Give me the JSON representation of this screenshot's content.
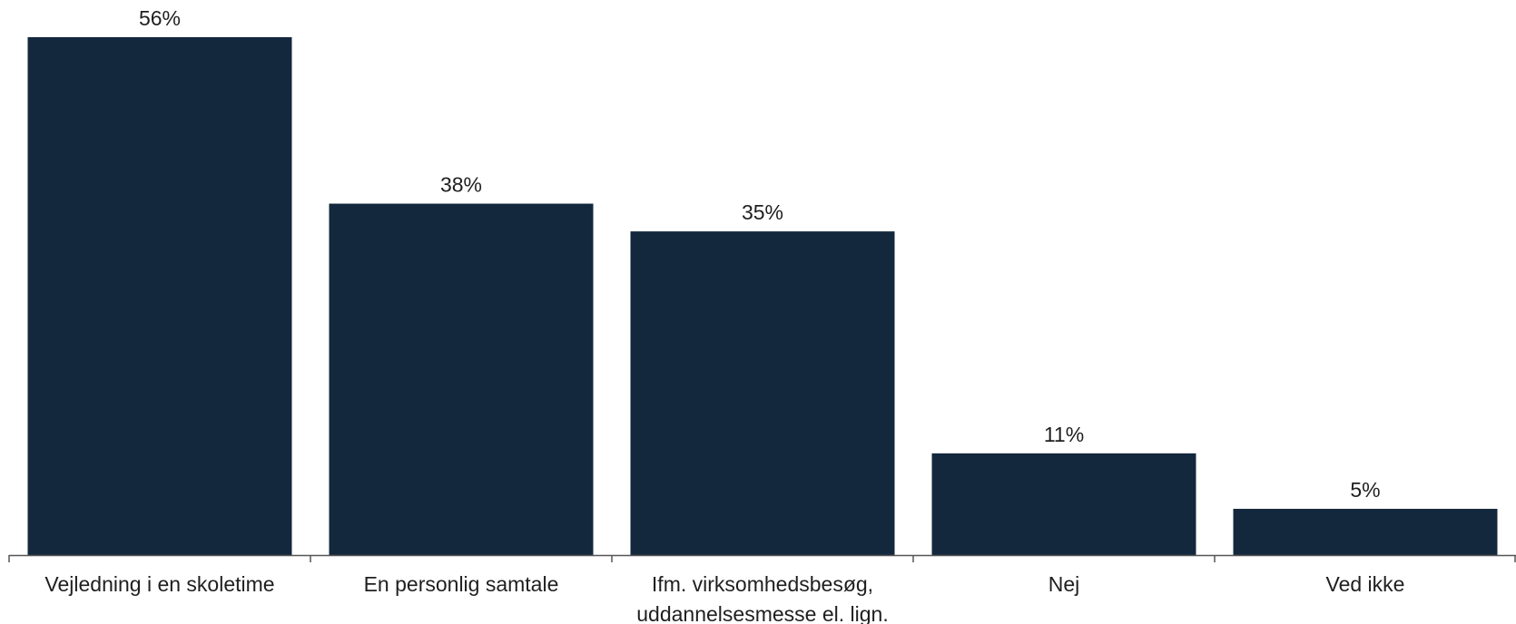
{
  "chart_data": {
    "type": "bar",
    "categories": [
      [
        "Vejledning i en skoletime"
      ],
      [
        "En personlig samtale"
      ],
      [
        "Ifm. virksomhedsbesøg,",
        "uddannelsesmesse el. lign."
      ],
      [
        "Nej"
      ],
      [
        "Ved ikke"
      ]
    ],
    "values": [
      56,
      38,
      35,
      11,
      5
    ],
    "value_labels": [
      "56%",
      "38%",
      "35%",
      "11%",
      "5%"
    ],
    "ylim": [
      0,
      56
    ],
    "grid": false,
    "legend": "none",
    "colors": {
      "bar": "#14283d",
      "axis": "#555555",
      "text": "#1f1f1f"
    }
  }
}
